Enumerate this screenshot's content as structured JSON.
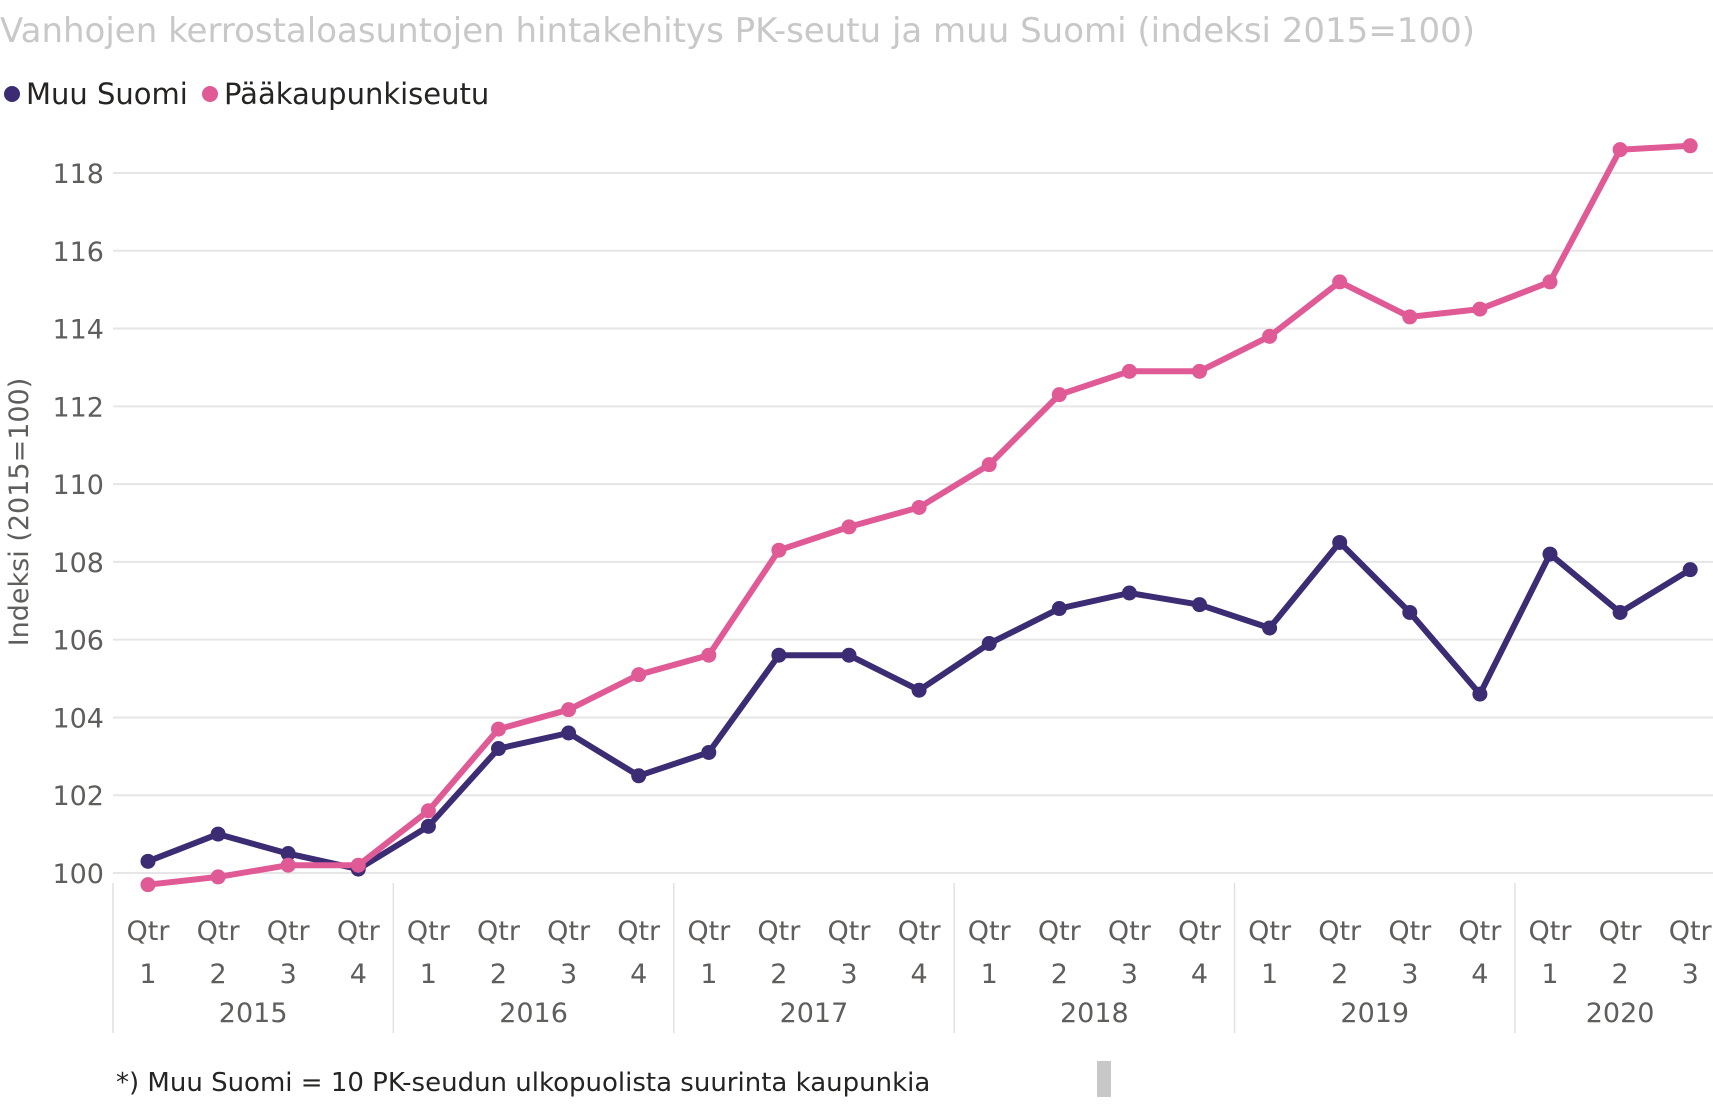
{
  "chart_data": {
    "type": "line",
    "title": "Vanhojen kerrostaloasuntojen hintakehitys PK-seutu ja muu Suomi (indeksi 2015=100)",
    "ylabel": "Indeksi (2015=100)",
    "xlabel": "",
    "ylim": [
      100,
      118
    ],
    "yticks": [
      "100",
      "102",
      "104",
      "106",
      "108",
      "110",
      "112",
      "114",
      "116",
      "118"
    ],
    "grid": true,
    "legend_position": "top-left",
    "quarter_prefix": "Qtr",
    "years": [
      {
        "year": "2015",
        "quarters": [
          "1",
          "2",
          "3",
          "4"
        ]
      },
      {
        "year": "2016",
        "quarters": [
          "1",
          "2",
          "3",
          "4"
        ]
      },
      {
        "year": "2017",
        "quarters": [
          "1",
          "2",
          "3",
          "4"
        ]
      },
      {
        "year": "2018",
        "quarters": [
          "1",
          "2",
          "3",
          "4"
        ]
      },
      {
        "year": "2019",
        "quarters": [
          "1",
          "2",
          "3",
          "4"
        ]
      },
      {
        "year": "2020",
        "quarters": [
          "1",
          "2",
          "3"
        ]
      }
    ],
    "series": [
      {
        "name": "Muu Suomi",
        "color": "#3b2c73",
        "values": [
          100.3,
          101.0,
          100.5,
          100.1,
          101.2,
          103.2,
          103.6,
          102.5,
          103.1,
          105.6,
          105.6,
          104.7,
          105.9,
          106.8,
          107.2,
          106.9,
          106.3,
          108.5,
          106.7,
          104.6,
          108.2,
          106.7,
          107.8
        ]
      },
      {
        "name": "Pääkaupunkiseutu",
        "color": "#e05a95",
        "values": [
          99.7,
          99.9,
          100.2,
          100.2,
          101.6,
          103.7,
          104.2,
          105.1,
          105.6,
          108.3,
          108.9,
          109.4,
          110.5,
          112.3,
          112.9,
          112.9,
          113.8,
          115.2,
          114.3,
          114.5,
          115.2,
          118.6,
          118.7
        ]
      }
    ]
  },
  "footnote": "*) Muu Suomi = 10 PK-seudun ulkopuolista suurinta kaupunkia"
}
